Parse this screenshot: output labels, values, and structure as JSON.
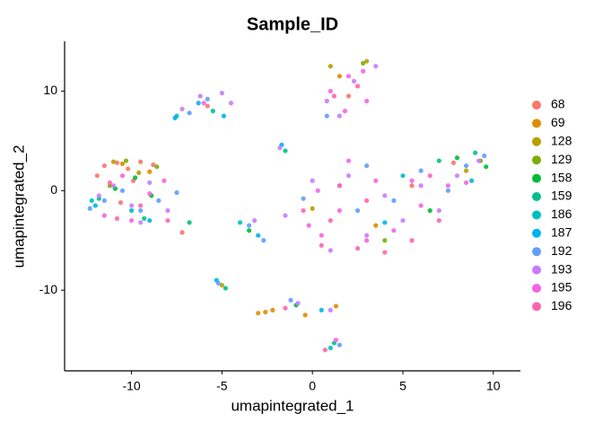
{
  "chart_data": {
    "type": "scatter",
    "title": "Sample_ID",
    "xlabel": "umapintegrated_1",
    "ylabel": "umapintegrated_2",
    "xlim": [
      -13.7,
      11.5
    ],
    "ylim": [
      -18.1,
      15
    ],
    "xticks": [
      -10,
      -5,
      0,
      5,
      10
    ],
    "yticks": [
      -10,
      0,
      10
    ],
    "grid": false,
    "legend": "right",
    "series": [
      {
        "name": "68",
        "color": "#F8766D",
        "x": [
          -11.5,
          -10.8,
          -10.2,
          -9.5,
          -11.9,
          -8.8,
          -9.9,
          -10.6,
          -7.2,
          2.0,
          5.5,
          7.8,
          -5.8
        ],
        "y": [
          2.5,
          2.8,
          2.2,
          2.9,
          1.5,
          2.6,
          1.0,
          -1.2,
          -4.2,
          9.5,
          0.5,
          2.8,
          8.5
        ]
      },
      {
        "name": "69",
        "color": "#DE8C00",
        "x": [
          -2.6,
          -3.0,
          -2.2,
          -0.4,
          1.3,
          -10.5,
          3.5,
          -9.0,
          1.5
        ],
        "y": [
          -12.2,
          -12.3,
          -12.0,
          -12.5,
          -11.6,
          2.7,
          -3.5,
          1.9,
          11.5
        ]
      },
      {
        "name": "128",
        "color": "#B79F00",
        "x": [
          -11.0,
          -9.6,
          0.0,
          1.0,
          8.5,
          3.0,
          -5.0
        ],
        "y": [
          2.9,
          1.8,
          -1.8,
          12.5,
          2.0,
          13.0,
          -9.5
        ]
      },
      {
        "name": "129",
        "color": "#7CAE00",
        "x": [
          -10.3,
          -8.6,
          -11.2,
          4.0,
          9.3,
          2.8
        ],
        "y": [
          3.0,
          2.4,
          0.5,
          -5.0,
          3.0,
          12.8
        ]
      },
      {
        "name": "158",
        "color": "#00BA38",
        "x": [
          -9.8,
          -10.9,
          -8.9,
          9.6,
          8.0,
          6.5,
          -3.5,
          -0.9
        ],
        "y": [
          1.3,
          0.2,
          -0.5,
          2.4,
          3.3,
          -2.0,
          -4.0,
          -11.5
        ]
      },
      {
        "name": "159",
        "color": "#00C08B",
        "x": [
          -11.8,
          -9.3,
          -6.8,
          -5.5,
          7.0,
          9.0,
          -1.5,
          1.2,
          -4.8
        ],
        "y": [
          -0.8,
          -2.8,
          -3.2,
          8.0,
          3.0,
          3.8,
          4.0,
          -15.3,
          -9.8
        ]
      },
      {
        "name": "186",
        "color": "#00BFC4",
        "x": [
          -10.0,
          -12.2,
          5.0,
          8.8,
          -4.0,
          -7.5,
          1.0
        ],
        "y": [
          -2.0,
          -1.0,
          1.5,
          1.0,
          -3.2,
          7.5,
          -15.8
        ]
      },
      {
        "name": "187",
        "color": "#00B4F0",
        "x": [
          -12.0,
          -9.0,
          -7.6,
          -6.3,
          -4.9,
          -1.7,
          0.5,
          4.0,
          -3.0,
          -5.3
        ],
        "y": [
          -1.5,
          -3.0,
          7.3,
          8.8,
          7.5,
          4.6,
          -12.0,
          -3.2,
          -4.5,
          -9.0
        ]
      },
      {
        "name": "192",
        "color": "#619CFF",
        "x": [
          -11.5,
          -10.5,
          -9.5,
          -8.5,
          -12.3,
          -7.5,
          -5.8,
          -6.8,
          1.5,
          2.5,
          6.0,
          7.5,
          8.5,
          9.5,
          4.5,
          3.0,
          -0.5,
          -3.5,
          -2.7,
          -5.2,
          1.5,
          -1.2,
          0.8
        ],
        "y": [
          -1.0,
          0.0,
          -2.0,
          -1.0,
          -1.8,
          -0.2,
          9.2,
          7.8,
          0.5,
          -2.0,
          2.0,
          0.0,
          2.5,
          3.5,
          -1.0,
          2.5,
          -0.8,
          -3.5,
          -5.0,
          -9.3,
          -15.5,
          -11.0,
          7.5
        ]
      },
      {
        "name": "193",
        "color": "#C77CFF",
        "x": [
          -11.0,
          -10.0,
          -9.0,
          -8.0,
          -11.8,
          -9.5,
          -7.2,
          -6.2,
          -5.0,
          -4.5,
          0.8,
          2.3,
          3.5,
          1.5,
          0.0,
          2.0,
          4.0,
          6.0,
          8.0,
          3.0,
          5.0,
          7.0,
          9.2,
          1.0,
          -1.5,
          -3.2,
          -0.8,
          1.0,
          -1.8
        ],
        "y": [
          0.5,
          -1.5,
          0.8,
          -2.0,
          -0.5,
          -3.2,
          8.2,
          9.5,
          9.8,
          8.8,
          9.0,
          11.0,
          12.5,
          7.5,
          1.0,
          1.5,
          -0.5,
          0.5,
          1.5,
          -4.5,
          -3.0,
          -2.0,
          3.0,
          -6.0,
          -2.5,
          -3.0,
          -11.3,
          -12.0,
          4.3
        ]
      },
      {
        "name": "195",
        "color": "#F564E3",
        "x": [
          -10.5,
          -9.0,
          -11.5,
          -8.2,
          -10.0,
          1.0,
          2.0,
          3.0,
          1.8,
          2.8,
          0.3,
          1.5,
          3.0,
          4.5,
          6.0,
          7.5,
          2.0,
          3.5,
          -0.2,
          5.5,
          8.5,
          0.5,
          -6.0,
          1.3
        ],
        "y": [
          1.5,
          -0.3,
          -2.5,
          1.0,
          -3.0,
          10.0,
          11.5,
          9.0,
          8.0,
          12.0,
          0.0,
          -2.0,
          -5.0,
          -4.0,
          -1.5,
          0.5,
          3.0,
          1.0,
          -3.5,
          1.0,
          0.8,
          -4.5,
          8.8,
          -15.0
        ]
      },
      {
        "name": "196",
        "color": "#FF64B0",
        "x": [
          -9.5,
          -10.8,
          -8.0,
          -11.2,
          1.2,
          2.5,
          1.0,
          0.5,
          2.5,
          4.0,
          5.5,
          7.0,
          3.0,
          1.5,
          -0.5,
          6.5,
          -1.5,
          0.7
        ],
        "y": [
          -1.5,
          -2.8,
          -3.0,
          0.8,
          9.5,
          10.5,
          -3.0,
          -5.5,
          -5.8,
          -6.2,
          -5.0,
          -3.0,
          -1.0,
          0.5,
          -2.0,
          1.5,
          -11.8,
          -16.0
        ]
      }
    ]
  }
}
